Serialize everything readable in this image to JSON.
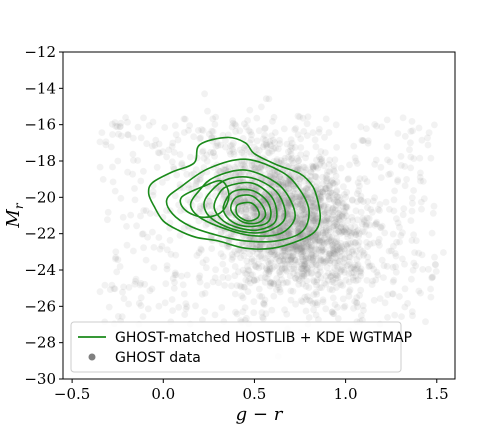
{
  "chart_data": {
    "type": "scatter",
    "title": "",
    "xlabel": "g − r",
    "ylabel": "M_r",
    "xlim": [
      -0.55,
      1.6
    ],
    "ylim": [
      -12,
      -30
    ],
    "y_inverted": true,
    "xticks": [
      -0.5,
      0.0,
      0.5,
      1.0,
      1.5
    ],
    "xtick_labels": [
      "−0.5",
      "0.0",
      "0.5",
      "1.0",
      "1.5"
    ],
    "yticks": [
      -12,
      -14,
      -16,
      -18,
      -20,
      -22,
      -24,
      -26,
      -28,
      -30
    ],
    "ytick_labels": [
      "−12",
      "−14",
      "−16",
      "−18",
      "−20",
      "−22",
      "−24",
      "−26",
      "−28",
      "−30"
    ],
    "grid": false,
    "legend_position": "lower-left",
    "series": [
      {
        "name": "GHOST-matched HOSTLIB + KDE WGTMAP",
        "kind": "kde-contours",
        "color": "#1a8a1a",
        "contours": [
          [
            [
              0.2,
              -17.1
            ],
            [
              0.35,
              -16.7
            ],
            [
              0.45,
              -17.0
            ],
            [
              0.5,
              -17.6
            ],
            [
              0.62,
              -18.2
            ],
            [
              0.75,
              -18.7
            ],
            [
              0.82,
              -19.4
            ],
            [
              0.85,
              -20.3
            ],
            [
              0.86,
              -21.2
            ],
            [
              0.83,
              -21.9
            ],
            [
              0.74,
              -22.4
            ],
            [
              0.6,
              -22.8
            ],
            [
              0.45,
              -22.8
            ],
            [
              0.3,
              -22.4
            ],
            [
              0.18,
              -22.2
            ],
            [
              0.08,
              -21.8
            ],
            [
              0.0,
              -21.3
            ],
            [
              -0.05,
              -20.5
            ],
            [
              -0.08,
              -19.8
            ],
            [
              -0.06,
              -19.2
            ],
            [
              0.05,
              -18.6
            ],
            [
              0.17,
              -18.1
            ],
            [
              0.2,
              -17.1
            ]
          ],
          [
            [
              0.25,
              -18.4
            ],
            [
              0.45,
              -17.9
            ],
            [
              0.65,
              -18.6
            ],
            [
              0.75,
              -19.6
            ],
            [
              0.8,
              -20.8
            ],
            [
              0.76,
              -21.9
            ],
            [
              0.62,
              -22.4
            ],
            [
              0.45,
              -22.4
            ],
            [
              0.3,
              -22.1
            ],
            [
              0.15,
              -21.6
            ],
            [
              0.05,
              -20.9
            ],
            [
              0.02,
              -20.1
            ],
            [
              0.1,
              -19.4
            ],
            [
              0.25,
              -18.4
            ]
          ],
          [
            [
              0.28,
              -18.9
            ],
            [
              0.45,
              -18.5
            ],
            [
              0.62,
              -19.2
            ],
            [
              0.7,
              -20.2
            ],
            [
              0.72,
              -21.2
            ],
            [
              0.64,
              -22.0
            ],
            [
              0.48,
              -22.1
            ],
            [
              0.33,
              -21.7
            ],
            [
              0.2,
              -21.1
            ],
            [
              0.15,
              -20.4
            ],
            [
              0.2,
              -19.6
            ],
            [
              0.28,
              -18.9
            ]
          ],
          [
            [
              0.33,
              -19.1
            ],
            [
              0.47,
              -18.9
            ],
            [
              0.6,
              -19.5
            ],
            [
              0.66,
              -20.4
            ],
            [
              0.66,
              -21.3
            ],
            [
              0.56,
              -21.9
            ],
            [
              0.44,
              -21.9
            ],
            [
              0.32,
              -21.5
            ],
            [
              0.24,
              -20.9
            ],
            [
              0.23,
              -20.1
            ],
            [
              0.33,
              -19.1
            ]
          ],
          [
            [
              0.35,
              -19.4
            ],
            [
              0.48,
              -19.2
            ],
            [
              0.58,
              -19.8
            ],
            [
              0.62,
              -20.6
            ],
            [
              0.61,
              -21.4
            ],
            [
              0.52,
              -21.8
            ],
            [
              0.42,
              -21.7
            ],
            [
              0.33,
              -21.3
            ],
            [
              0.28,
              -20.6
            ],
            [
              0.3,
              -19.9
            ],
            [
              0.35,
              -19.4
            ]
          ],
          [
            [
              0.38,
              -19.7
            ],
            [
              0.48,
              -19.6
            ],
            [
              0.56,
              -20.1
            ],
            [
              0.59,
              -20.8
            ],
            [
              0.57,
              -21.4
            ],
            [
              0.49,
              -21.6
            ],
            [
              0.41,
              -21.5
            ],
            [
              0.35,
              -21.1
            ],
            [
              0.33,
              -20.5
            ],
            [
              0.38,
              -19.7
            ]
          ],
          [
            [
              0.4,
              -20.0
            ],
            [
              0.48,
              -19.9
            ],
            [
              0.54,
              -20.4
            ],
            [
              0.56,
              -21.0
            ],
            [
              0.52,
              -21.4
            ],
            [
              0.45,
              -21.4
            ],
            [
              0.4,
              -21.1
            ],
            [
              0.37,
              -20.6
            ],
            [
              0.4,
              -20.0
            ]
          ],
          [
            [
              0.41,
              -20.4
            ],
            [
              0.48,
              -20.3
            ],
            [
              0.52,
              -20.7
            ],
            [
              0.52,
              -21.1
            ],
            [
              0.47,
              -21.3
            ],
            [
              0.42,
              -21.1
            ],
            [
              0.4,
              -20.8
            ],
            [
              0.41,
              -20.4
            ]
          ],
          [
            [
              0.22,
              -19.4
            ],
            [
              0.32,
              -19.1
            ],
            [
              0.36,
              -19.9
            ],
            [
              0.32,
              -20.8
            ],
            [
              0.22,
              -21.1
            ],
            [
              0.12,
              -20.7
            ],
            [
              0.1,
              -20.0
            ],
            [
              0.22,
              -19.4
            ]
          ]
        ]
      },
      {
        "name": "GHOST data",
        "kind": "scatter-cloud",
        "color": "#808080",
        "center": [
          0.68,
          -21.2
        ],
        "x_spread": 0.22,
        "y_spread": 1.9
      }
    ]
  }
}
